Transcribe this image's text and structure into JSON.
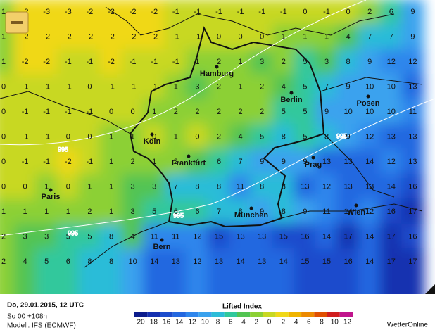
{
  "map": {
    "grid": [
      [
        1,
        -2,
        -3,
        -3,
        -2,
        -2,
        -2,
        -2,
        -1,
        -1,
        -1,
        -1,
        -1,
        -1,
        0,
        -1,
        0,
        2,
        6,
        9
      ],
      [
        1,
        -2,
        -2,
        -2,
        -2,
        -2,
        -2,
        -2,
        -1,
        -1,
        0,
        0,
        0,
        1,
        1,
        1,
        4,
        7,
        7,
        9
      ],
      [
        1,
        -2,
        -2,
        -1,
        -1,
        -2,
        -1,
        -1,
        -1,
        1,
        2,
        1,
        3,
        2,
        5,
        3,
        8,
        9,
        12,
        12
      ],
      [
        0,
        -1,
        -1,
        -1,
        0,
        -1,
        -1,
        -1,
        1,
        3,
        2,
        1,
        2,
        4,
        5,
        7,
        9,
        10,
        10,
        13
      ],
      [
        0,
        -1,
        -1,
        -1,
        -1,
        0,
        0,
        1,
        2,
        2,
        2,
        2,
        2,
        5,
        5,
        9,
        10,
        10,
        10,
        11
      ],
      [
        0,
        -1,
        -1,
        0,
        0,
        1,
        1,
        0,
        1,
        0,
        2,
        4,
        5,
        8,
        5,
        8,
        9,
        12,
        13,
        13
      ],
      [
        0,
        -1,
        -1,
        -2,
        -1,
        1,
        2,
        1,
        2,
        4,
        6,
        7,
        9,
        9,
        9,
        13,
        13,
        14,
        12,
        13
      ],
      [
        0,
        0,
        1,
        0,
        1,
        1,
        3,
        3,
        7,
        8,
        8,
        11,
        8,
        8,
        13,
        12,
        13,
        13,
        14,
        16
      ],
      [
        1,
        1,
        1,
        1,
        2,
        1,
        3,
        5,
        6,
        6,
        7,
        8,
        9,
        8,
        9,
        11,
        14,
        12,
        16,
        17
      ],
      [
        2,
        3,
        3,
        5,
        5,
        8,
        4,
        11,
        11,
        12,
        15,
        13,
        13,
        15,
        16,
        14,
        17,
        14,
        17,
        16
      ],
      [
        2,
        4,
        5,
        6,
        8,
        8,
        10,
        14,
        13,
        12,
        13,
        14,
        13,
        14,
        15,
        15,
        16,
        14,
        17,
        17
      ]
    ],
    "cities": [
      "Hamburg",
      "Berlin",
      "Posen",
      "Köln",
      "Frankfurt",
      "Prag",
      "Paris",
      "München",
      "Wien",
      "Bern"
    ],
    "isobars": [
      "995",
      "995",
      "995",
      "995"
    ]
  },
  "footer": {
    "date": "Do, 29.01.2015, 12 UTC",
    "run": "So 00 +108h",
    "model": "Modell: IFS (ECMWF)",
    "brand": "WetterOnline"
  },
  "legend": {
    "title": "Lifted Index",
    "ticks": [
      20,
      18,
      16,
      14,
      12,
      10,
      8,
      6,
      4,
      2,
      0,
      -2,
      -4,
      -6,
      -8,
      -10,
      -12
    ],
    "colors": [
      "#0c1c8c",
      "#1430b0",
      "#1c4ccc",
      "#2468e0",
      "#2f86ec",
      "#3aa2ee",
      "#2cbcd8",
      "#30c89c",
      "#52c452",
      "#8cd034",
      "#c8d822",
      "#f0d818",
      "#f0b400",
      "#ec8a00",
      "#e05000",
      "#d01e1e",
      "#c0148c"
    ]
  }
}
